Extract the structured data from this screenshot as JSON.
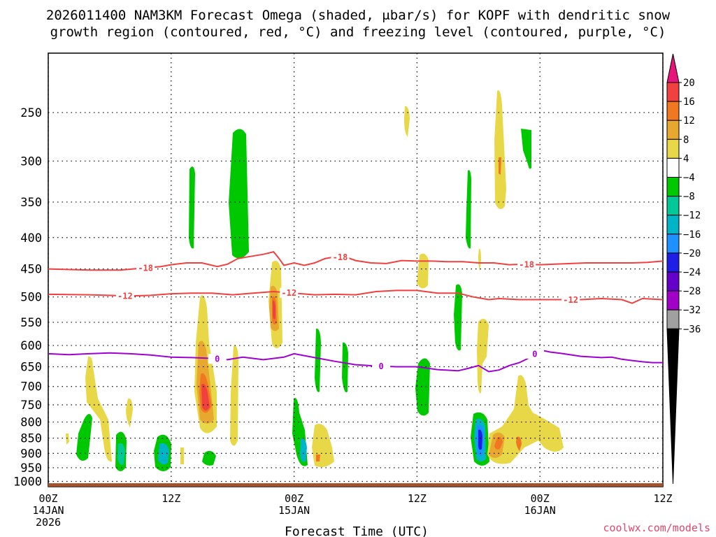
{
  "title": {
    "line1": "2026011400 NAM3KM Forecast Omega (shaded, μbar/s) for KOPF with dendritic snow",
    "line2": "growth region (contoured, red, °C) and freezing level (contoured, purple, °C)"
  },
  "credit": "coolwx.com/models",
  "colors": {
    "dendritic": "#f04040",
    "freezing": "#a000d0",
    "ground": "#a0522d",
    "grid": "#000000"
  },
  "chart_data": {
    "type": "heatmap",
    "xlabel": "Forecast Time (UTC)",
    "xlim": [
      0,
      60
    ],
    "ylim_hPa": [
      1020,
      200
    ],
    "y_scale": "log",
    "grid": true,
    "x_ticks": [
      {
        "value": 0,
        "line1": "00Z",
        "line2": "14JAN",
        "line3": "2026"
      },
      {
        "value": 12,
        "line1": "12Z",
        "line2": "",
        "line3": ""
      },
      {
        "value": 24,
        "line1": "00Z",
        "line2": "15JAN",
        "line3": ""
      },
      {
        "value": 36,
        "line1": "12Z",
        "line2": "",
        "line3": ""
      },
      {
        "value": 48,
        "line1": "00Z",
        "line2": "16JAN",
        "line3": ""
      },
      {
        "value": 60,
        "line1": "12Z",
        "line2": "",
        "line3": ""
      }
    ],
    "y_ticks": [
      "250",
      "300",
      "350",
      "400",
      "450",
      "500",
      "550",
      "600",
      "650",
      "700",
      "750",
      "800",
      "850",
      "900",
      "950",
      "1000"
    ],
    "colorbar": {
      "ticks": [
        "20",
        "16",
        "12",
        "8",
        "4",
        "−4",
        "−8",
        "−12",
        "−16",
        "−20",
        "−24",
        "−28",
        "−32",
        "−36"
      ],
      "colors": [
        "#e8147c",
        "#f04040",
        "#f07820",
        "#e8a830",
        "#e8d848",
        "#ffffff",
        "#00c800",
        "#00c896",
        "#00b4c8",
        "#1e90ff",
        "#1e1ee6",
        "#6400c8",
        "#a000c8",
        "#a0a0a0",
        "#000000"
      ]
    },
    "series": [
      {
        "name": "dendritic snow growth region (−18)",
        "contour_label": "-18",
        "color": "#f04040",
        "x": [
          0,
          4,
          7,
          9,
          11,
          12,
          13.5,
          15,
          16.5,
          17.5,
          18.5,
          19.5,
          21,
          22,
          22.5,
          23,
          24,
          25,
          26,
          27,
          28,
          29,
          30,
          31.5,
          33,
          34.5,
          36,
          37.5,
          39,
          40.5,
          42,
          43.5,
          45,
          46.5,
          48,
          49.5,
          51,
          52.5,
          54,
          55.5,
          57,
          58.5,
          60
        ],
        "y": [
          450,
          452,
          452,
          449,
          446,
          443,
          440,
          440,
          446,
          442,
          433,
          430,
          426,
          422,
          432,
          444,
          440,
          444,
          440,
          433,
          430,
          430,
          436,
          440,
          441,
          436,
          437,
          437,
          438,
          438,
          440,
          440,
          443,
          442,
          443,
          442,
          441,
          440,
          440,
          440,
          440,
          439,
          437
        ],
        "label_x": [
          9.5,
          28.5,
          46.7
        ]
      },
      {
        "name": "dendritic snow growth region (−12)",
        "contour_label": "-12",
        "color": "#f04040",
        "x": [
          0,
          4,
          8,
          10,
          12,
          14,
          16,
          18,
          20,
          22,
          24,
          26,
          28,
          30,
          32,
          34,
          36,
          38,
          40,
          41.5,
          43,
          44,
          45,
          46,
          48,
          50,
          52,
          54,
          56,
          57,
          58,
          60
        ],
        "y": [
          495,
          496,
          498,
          497,
          494,
          493,
          493,
          496,
          493,
          490,
          493,
          496,
          495,
          496,
          490,
          488,
          488,
          493,
          493,
          500,
          505,
          503,
          504,
          505,
          505,
          505,
          505,
          503,
          505,
          512,
          503,
          505
        ],
        "label_x": [
          7.5,
          23.5,
          51
        ]
      },
      {
        "name": "freezing level (0)",
        "contour_label": "0",
        "color": "#a000d0",
        "x": [
          0,
          2,
          4,
          6,
          8,
          10,
          12,
          14,
          16,
          17.5,
          19,
          21,
          23,
          24,
          26,
          28,
          30,
          32,
          34,
          36,
          38,
          40,
          41,
          42,
          43,
          44,
          45,
          46,
          47,
          48,
          49,
          50,
          52,
          54,
          55,
          56,
          57,
          58,
          59,
          60
        ],
        "y": [
          619,
          621,
          619,
          617,
          619,
          622,
          627,
          628,
          630,
          633,
          627,
          633,
          627,
          619,
          628,
          637,
          645,
          648,
          650,
          650,
          657,
          660,
          654,
          647,
          662,
          658,
          647,
          640,
          628,
          610,
          615,
          618,
          625,
          628,
          627,
          632,
          635,
          638,
          640,
          640
        ],
        "label_x": [
          16.5,
          32.5,
          47.5
        ]
      }
    ]
  }
}
